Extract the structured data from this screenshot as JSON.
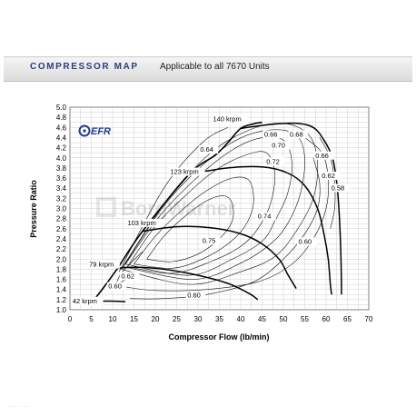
{
  "header": {
    "title": "COMPRESSOR MAP",
    "subtitle": "Applicable to all 7670 Units"
  },
  "logo": {
    "text": "EFR",
    "color": "#1f3f8f"
  },
  "watermark": {
    "text": "BorgWarner"
  },
  "chart_data": {
    "type": "line",
    "title": "",
    "xlabel": "Compressor Flow (lb/min)",
    "ylabel": "Pressure Ratio",
    "xlim": [
      0,
      70
    ],
    "ylim": [
      1.0,
      5.0
    ],
    "grid": true,
    "x_ticks": [
      0,
      5,
      10,
      15,
      20,
      25,
      30,
      35,
      40,
      45,
      50,
      55,
      60,
      65,
      70
    ],
    "y_ticks": [
      1.0,
      1.2,
      1.4,
      1.6,
      1.8,
      2.0,
      2.2,
      2.4,
      2.6,
      2.8,
      3.0,
      3.2,
      3.4,
      3.6,
      3.8,
      4.0,
      4.2,
      4.4,
      4.6,
      4.8,
      5.0
    ],
    "speed_lines": [
      {
        "label": "42 krpm",
        "points": [
          [
            5,
            1.16
          ],
          [
            9,
            1.17
          ],
          [
            13,
            1.16
          ]
        ]
      },
      {
        "label": "79 krpm",
        "points": [
          [
            11,
            1.82
          ],
          [
            16,
            1.84
          ],
          [
            22,
            1.8
          ],
          [
            30,
            1.68
          ],
          [
            37,
            1.52
          ],
          [
            42,
            1.32
          ],
          [
            44,
            1.2
          ]
        ]
      },
      {
        "label": "103 krpm",
        "points": [
          [
            17,
            2.55
          ],
          [
            25,
            2.64
          ],
          [
            33,
            2.62
          ],
          [
            40,
            2.5
          ],
          [
            45,
            2.3
          ],
          [
            49,
            2.0
          ],
          [
            51,
            1.7
          ],
          [
            53,
            1.42
          ]
        ]
      },
      {
        "label": "123 krpm",
        "points": [
          [
            28,
            3.68
          ],
          [
            37,
            3.8
          ],
          [
            45,
            3.82
          ],
          [
            51,
            3.7
          ],
          [
            55,
            3.45
          ],
          [
            58,
            3.0
          ],
          [
            59.5,
            2.5
          ],
          [
            60.5,
            2.0
          ],
          [
            61,
            1.5
          ],
          [
            61.3,
            1.3
          ]
        ]
      },
      {
        "label": "140 krpm",
        "points": [
          [
            40,
            4.58
          ],
          [
            47,
            4.66
          ],
          [
            53,
            4.68
          ],
          [
            57,
            4.6
          ],
          [
            59.5,
            4.35
          ],
          [
            61.5,
            4.0
          ],
          [
            62.5,
            3.5
          ],
          [
            63,
            3.0
          ],
          [
            63.3,
            2.5
          ],
          [
            63.5,
            2.0
          ],
          [
            63.6,
            1.5
          ],
          [
            63.6,
            1.3
          ]
        ]
      }
    ],
    "surge_line": [
      [
        5.5,
        1.18
      ],
      [
        8,
        1.45
      ],
      [
        11,
        1.8
      ],
      [
        17,
        2.55
      ],
      [
        28,
        3.68
      ],
      [
        34,
        4.05
      ],
      [
        37,
        4.3
      ],
      [
        40,
        4.58
      ],
      [
        43,
        4.67
      ],
      [
        45,
        4.7
      ]
    ],
    "efficiency_islands": [
      {
        "label": "0.75",
        "points": [
          [
            18,
            2.0
          ],
          [
            22,
            2.45
          ],
          [
            27,
            2.85
          ],
          [
            32,
            3.15
          ],
          [
            36,
            3.25
          ],
          [
            38,
            3.1
          ],
          [
            38,
            2.75
          ],
          [
            35,
            2.4
          ],
          [
            30,
            2.1
          ],
          [
            24,
            1.95
          ],
          [
            18,
            2.0
          ]
        ]
      },
      {
        "label": "0.74",
        "points": [
          [
            15,
            1.9
          ],
          [
            20,
            2.45
          ],
          [
            26,
            2.95
          ],
          [
            32,
            3.35
          ],
          [
            38,
            3.6
          ],
          [
            42,
            3.55
          ],
          [
            43,
            3.1
          ],
          [
            41,
            2.65
          ],
          [
            37,
            2.3
          ],
          [
            31,
            2.0
          ],
          [
            24,
            1.82
          ],
          [
            15,
            1.9
          ]
        ]
      },
      {
        "label": "0.72",
        "points": [
          [
            13.5,
            1.85
          ],
          [
            20,
            2.65
          ],
          [
            27,
            3.25
          ],
          [
            34,
            3.75
          ],
          [
            41,
            4.05
          ],
          [
            46,
            4.1
          ],
          [
            48,
            3.7
          ],
          [
            47,
            3.1
          ],
          [
            44,
            2.6
          ],
          [
            40,
            2.25
          ],
          [
            33,
            1.95
          ],
          [
            24,
            1.72
          ],
          [
            13.5,
            1.85
          ]
        ]
      },
      {
        "label": "0.70",
        "points": [
          [
            13,
            1.9
          ],
          [
            21,
            2.85
          ],
          [
            29,
            3.55
          ],
          [
            37,
            4.1
          ],
          [
            44,
            4.38
          ],
          [
            50,
            4.35
          ],
          [
            52,
            3.9
          ],
          [
            51,
            3.3
          ],
          [
            48,
            2.75
          ],
          [
            45,
            2.35
          ],
          [
            38,
            2.0
          ],
          [
            28,
            1.68
          ],
          [
            13,
            1.9
          ]
        ]
      },
      {
        "label": "0.68",
        "points": [
          [
            12.5,
            1.85
          ],
          [
            22,
            3.05
          ],
          [
            31,
            3.85
          ],
          [
            39,
            4.35
          ],
          [
            47,
            4.55
          ],
          [
            53,
            4.45
          ],
          [
            55,
            4.0
          ],
          [
            54,
            3.3
          ],
          [
            51,
            2.7
          ],
          [
            47,
            2.3
          ],
          [
            40,
            1.92
          ],
          [
            29,
            1.6
          ],
          [
            12.5,
            1.85
          ]
        ]
      },
      {
        "label": "0.66",
        "points": [
          [
            12,
            1.8
          ],
          [
            23,
            3.2
          ],
          [
            33,
            4.1
          ],
          [
            42,
            4.55
          ],
          [
            50,
            4.68
          ],
          [
            56,
            4.45
          ],
          [
            58,
            3.9
          ],
          [
            57,
            3.2
          ],
          [
            53,
            2.55
          ],
          [
            48,
            2.05
          ],
          [
            40,
            1.75
          ],
          [
            28,
            1.5
          ],
          [
            12,
            1.8
          ]
        ]
      },
      {
        "label": "0.64",
        "points": [
          [
            11.5,
            1.75
          ],
          [
            22,
            3.4
          ],
          [
            31,
            4.3
          ],
          [
            37,
            4.6
          ]
        ]
      },
      {
        "label": "0.62",
        "points": [
          [
            11,
            1.55
          ],
          [
            12,
            1.72
          ],
          [
            14,
            1.9
          ],
          [
            17,
            2.15
          ]
        ]
      },
      {
        "label": "0.62",
        "points": [
          [
            55,
            4.4
          ],
          [
            59,
            4.1
          ],
          [
            60.5,
            3.6
          ],
          [
            60,
            3.0
          ],
          [
            57,
            2.4
          ],
          [
            52,
            1.9
          ],
          [
            44,
            1.55
          ],
          [
            32,
            1.4
          ],
          [
            20,
            1.38
          ],
          [
            13,
            1.45
          ]
        ]
      },
      {
        "label": "0.60",
        "points": [
          [
            9.5,
            1.42
          ],
          [
            11,
            1.5
          ],
          [
            13,
            1.6
          ],
          [
            15,
            1.75
          ]
        ]
      },
      {
        "label": "0.60",
        "points": [
          [
            57,
            4.0
          ],
          [
            58.5,
            3.5
          ],
          [
            58,
            3.0
          ],
          [
            55,
            2.5
          ],
          [
            50,
            2.0
          ],
          [
            43,
            1.55
          ],
          [
            32,
            1.3
          ],
          [
            22,
            1.22
          ],
          [
            14,
            1.22
          ]
        ]
      },
      {
        "label": "0.58",
        "points": [
          [
            58.5,
            4.4
          ],
          [
            61,
            4.0
          ],
          [
            62,
            3.5
          ],
          [
            62,
            3.0
          ],
          [
            61,
            2.6
          ]
        ]
      }
    ],
    "annotations": [
      {
        "text": "140 krpm",
        "x": 33.5,
        "y": 4.72
      },
      {
        "text": "123 krpm",
        "x": 23.5,
        "y": 3.68
      },
      {
        "text": "103 krpm",
        "x": 13.5,
        "y": 2.67
      },
      {
        "text": "79 krpm",
        "x": 4.5,
        "y": 1.85
      },
      {
        "text": "42 krpm",
        "x": 0.6,
        "y": 1.13
      },
      {
        "text": "0.64",
        "x": 30.5,
        "y": 4.12
      },
      {
        "text": "0.66",
        "x": 45.5,
        "y": 4.42
      },
      {
        "text": "0.68",
        "x": 51.5,
        "y": 4.42
      },
      {
        "text": "0.70",
        "x": 47.3,
        "y": 4.2
      },
      {
        "text": "0.72",
        "x": 46,
        "y": 3.88
      },
      {
        "text": "0.66",
        "x": 57.5,
        "y": 4.0
      },
      {
        "text": "0.62",
        "x": 59,
        "y": 3.6
      },
      {
        "text": "0.58",
        "x": 61.2,
        "y": 3.36
      },
      {
        "text": "0.75",
        "x": 31,
        "y": 2.32
      },
      {
        "text": "0.74",
        "x": 44,
        "y": 2.8
      },
      {
        "text": "0.60",
        "x": 53.5,
        "y": 2.3
      },
      {
        "text": "0.62",
        "x": 12,
        "y": 1.62
      },
      {
        "text": "0.60",
        "x": 9,
        "y": 1.42
      },
      {
        "text": "0.60",
        "x": 27.5,
        "y": 1.24
      }
    ]
  }
}
